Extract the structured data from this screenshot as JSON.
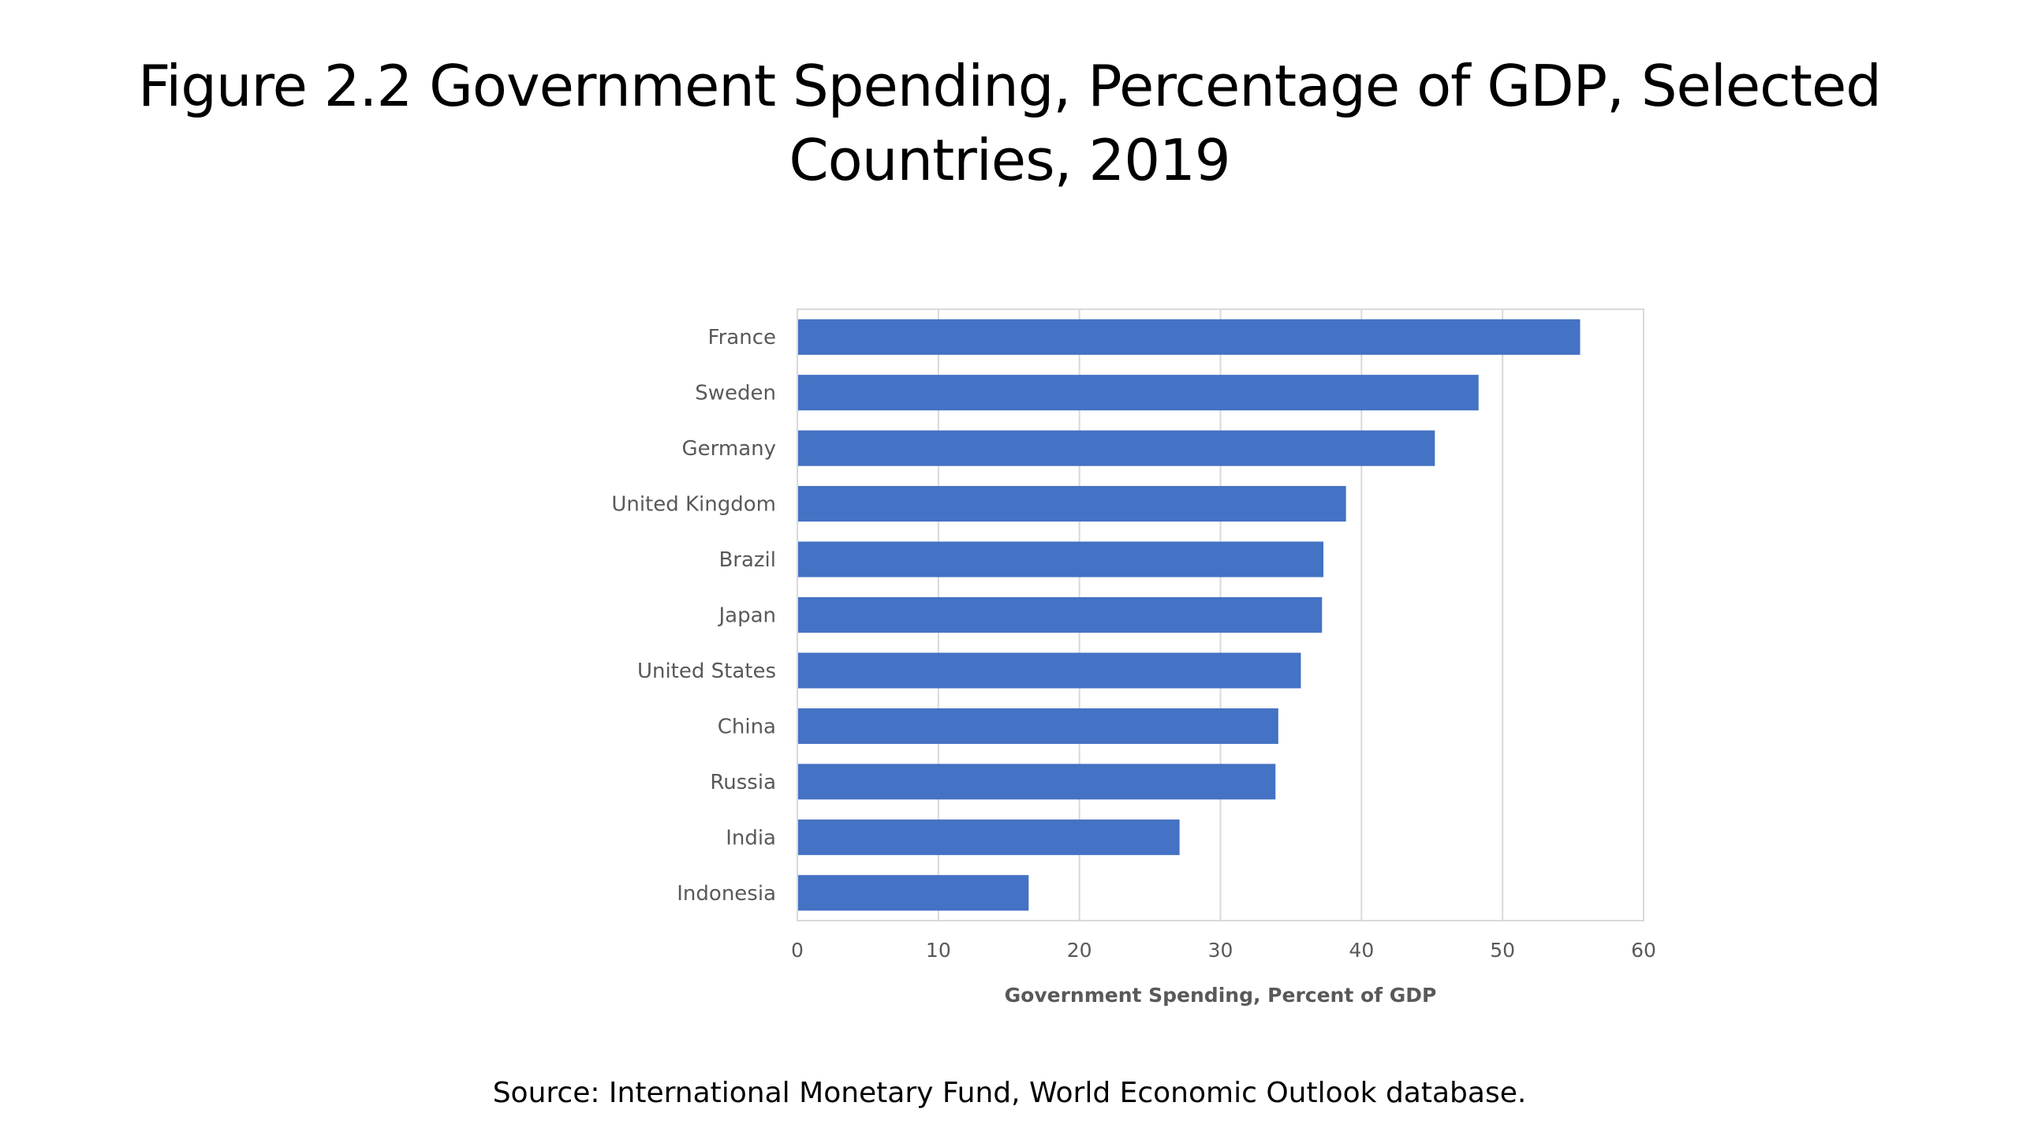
{
  "slide": {
    "title_line1": "Figure 2.2 Government Spending, Percentage of GDP, Selected",
    "title_line2": "Countries, 2019",
    "source": "Source: International Monetary Fund, World Economic Outlook database."
  },
  "chart_data": {
    "type": "bar",
    "orientation": "horizontal",
    "categories": [
      "France",
      "Sweden",
      "Germany",
      "United Kingdom",
      "Brazil",
      "Japan",
      "United States",
      "China",
      "Russia",
      "India",
      "Indonesia"
    ],
    "values": [
      55.5,
      48.3,
      45.2,
      38.9,
      37.3,
      37.2,
      35.7,
      34.1,
      33.9,
      27.1,
      16.4
    ],
    "xlabel": "Government Spending, Percent of GDP",
    "ylabel": "",
    "xlim": [
      0,
      60
    ],
    "xticks": [
      0,
      10,
      20,
      30,
      40,
      50,
      60
    ],
    "grid": true,
    "legend": "none",
    "bar_color": "#4472C4",
    "grid_color": "#d9d9d9",
    "label_color": "#595959"
  }
}
